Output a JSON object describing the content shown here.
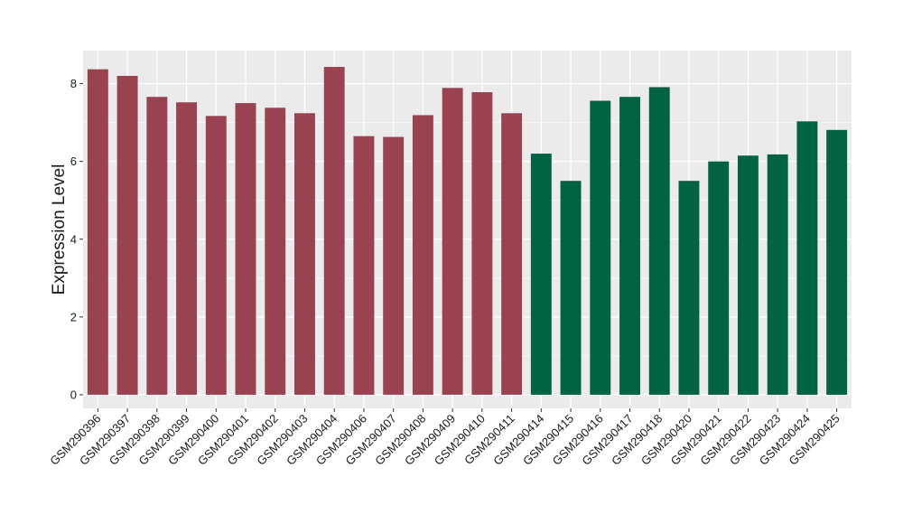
{
  "chart_data": {
    "type": "bar",
    "title": "",
    "xlabel": "",
    "ylabel": "Expression Level",
    "ylim": [
      -0.35,
      8.85
    ],
    "yticks": [
      0,
      2,
      4,
      6,
      8
    ],
    "grid": true,
    "legend": "none",
    "colors": {
      "group_a": "#9b4251",
      "group_b": "#006443",
      "panel": "#ebebeb",
      "grid": "#ffffff"
    },
    "categories": [
      "GSM290396",
      "GSM290397",
      "GSM290398",
      "GSM290399",
      "GSM290400",
      "GSM290401",
      "GSM290402",
      "GSM290403",
      "GSM290404",
      "GSM290406",
      "GSM290407",
      "GSM290408",
      "GSM290409",
      "GSM290410",
      "GSM290411",
      "GSM290414",
      "GSM290415",
      "GSM290416",
      "GSM290417",
      "GSM290418",
      "GSM290420",
      "GSM290421",
      "GSM290422",
      "GSM290423",
      "GSM290424",
      "GSM290425"
    ],
    "values": [
      8.37,
      8.2,
      7.66,
      7.52,
      7.17,
      7.5,
      7.38,
      7.24,
      8.43,
      6.65,
      6.63,
      7.19,
      7.89,
      7.78,
      7.24,
      6.2,
      5.5,
      7.56,
      7.66,
      7.91,
      5.5,
      6.0,
      6.15,
      6.18,
      7.03,
      6.81
    ],
    "groups": [
      "a",
      "a",
      "a",
      "a",
      "a",
      "a",
      "a",
      "a",
      "a",
      "a",
      "a",
      "a",
      "a",
      "a",
      "a",
      "b",
      "b",
      "b",
      "b",
      "b",
      "b",
      "b",
      "b",
      "b",
      "b",
      "b"
    ]
  }
}
